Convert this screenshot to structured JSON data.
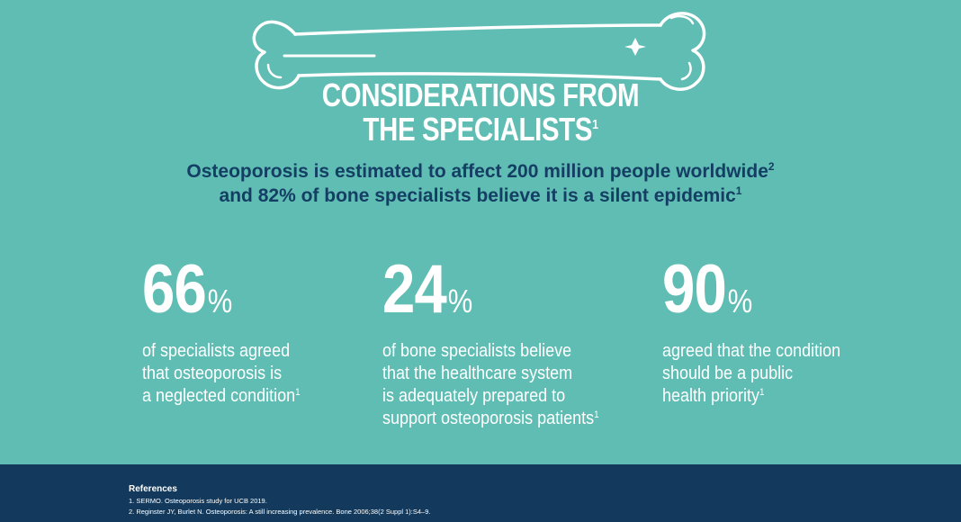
{
  "header": {
    "title_line1": "CONSIDERATIONS FROM",
    "title_line2": "THE SPECIALISTS",
    "title_sup": "1"
  },
  "intro": {
    "line1": "Osteoporosis is estimated to affect 200 million people worldwide",
    "line1_sup": "2",
    "line2": "and 82% of bone specialists believe it is a silent epidemic",
    "line2_sup": "1"
  },
  "stats": [
    {
      "value": "66",
      "unit": "%",
      "lines": [
        "of specialists agreed",
        "that osteoporosis is",
        "a neglected condition"
      ],
      "sup": "1"
    },
    {
      "value": "24",
      "unit": "%",
      "lines": [
        "of bone specialists believe",
        "that the healthcare system",
        "is adequately prepared to",
        "support osteoporosis patients"
      ],
      "sup": "1"
    },
    {
      "value": "90",
      "unit": "%",
      "lines": [
        "agreed that the condition",
        "should be a public",
        "health priority"
      ],
      "sup": "1"
    }
  ],
  "references": {
    "heading": "References",
    "items": [
      "1. SERMO. Osteoporosis study for UCB 2019.",
      "2. Reginster JY, Burlet N. Osteoporosis: A still increasing prevalence. Bone 2006;38(2 Suppl 1):S4–9."
    ]
  },
  "colors": {
    "background": "#5fbdb3",
    "text_dark": "#143e63",
    "footer": "#133a5c",
    "text_light": "#ffffff"
  },
  "icons": [
    "bone-icon"
  ]
}
